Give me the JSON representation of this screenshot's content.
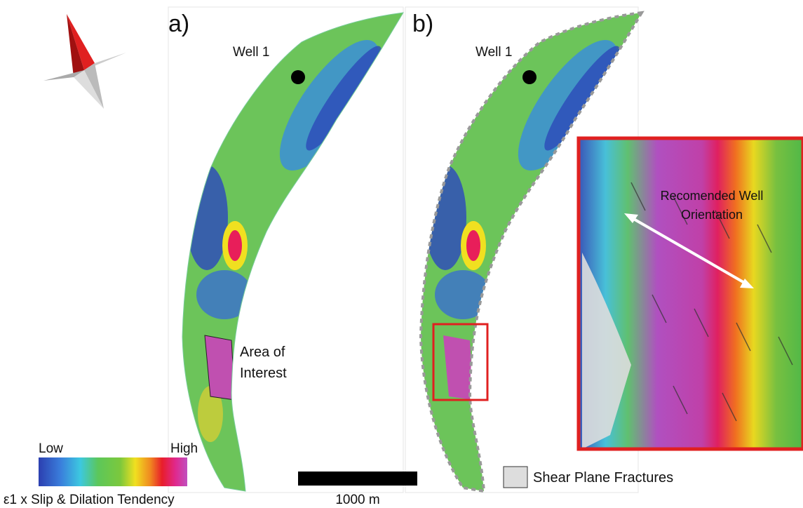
{
  "panels": [
    {
      "label": "a)",
      "well": "Well 1",
      "annotation": [
        "Area of",
        "Interest"
      ]
    },
    {
      "label": "b)",
      "well": "Well 1"
    }
  ],
  "inset": {
    "annotation": [
      "Recomended Well",
      "Orientation"
    ]
  },
  "colorbar": {
    "low": "Low",
    "high": "High",
    "title": "ε1 x Slip & Dilation Tendency"
  },
  "scale_bar": {
    "label": "1000 m"
  },
  "legend": {
    "label": "Shear Plane Fractures"
  }
}
